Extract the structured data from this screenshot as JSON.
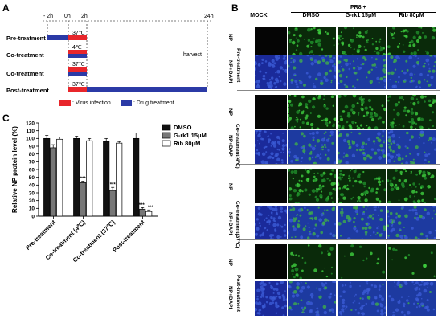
{
  "panelA": {
    "letter": "A",
    "time_labels": [
      "- 2h",
      "0h",
      "2h",
      "24h"
    ],
    "rows": [
      {
        "label": "Pre-treatment",
        "temp": "37℃"
      },
      {
        "label": "Co-treatment",
        "temp": "4℃"
      },
      {
        "label": "Co-treatment",
        "temp": "37℃"
      },
      {
        "label": "Post-treatment",
        "temp": "37℃"
      }
    ],
    "harvest": "harvest",
    "legend_virus": ": Virus infection",
    "legend_drug": ": Drug treatment",
    "colors": {
      "virus": "#e8262b",
      "drug": "#2b3aa6"
    }
  },
  "panelB": {
    "letter": "B",
    "pr8_label": "PR8 +",
    "columns": [
      "MOCK",
      "DMSO",
      "G-rk1 15μM",
      "Rib 80μM"
    ],
    "stain_np": "NP",
    "stain_np_dapi": "NP+DAPI",
    "groups": [
      "Pre-treatment",
      "Co-treatment(4℃)",
      "Co-treatment(37℃)",
      "Post-treatment"
    ]
  },
  "panelC": {
    "letter": "C",
    "chart_data": {
      "type": "bar",
      "ylabel": "Relative NP protein level  (%)",
      "categories": [
        "Pre-treatment",
        "Co-treatment (4℃)",
        "Co-treatment (37℃)",
        "Post-treatment"
      ],
      "ylim": [
        0,
        120
      ],
      "yticks": [
        0,
        10,
        20,
        30,
        40,
        50,
        60,
        70,
        80,
        90,
        100,
        110,
        120
      ],
      "series": [
        {
          "name": "DMSO",
          "color": "#111111",
          "values": [
            100,
            100,
            96,
            100
          ],
          "errors": [
            4,
            3,
            4,
            7
          ]
        },
        {
          "name": "G-rk1 15μM",
          "color": "#777777",
          "values": [
            88,
            43,
            33,
            9
          ],
          "errors": [
            4,
            2,
            4,
            2
          ]
        },
        {
          "name": "Rib 80μM",
          "color": "#ffffff",
          "values": [
            99,
            97,
            94,
            6
          ],
          "errors": [
            3,
            3,
            2,
            2
          ]
        }
      ],
      "annotations": [
        "***",
        "***",
        "***",
        "***"
      ]
    }
  }
}
